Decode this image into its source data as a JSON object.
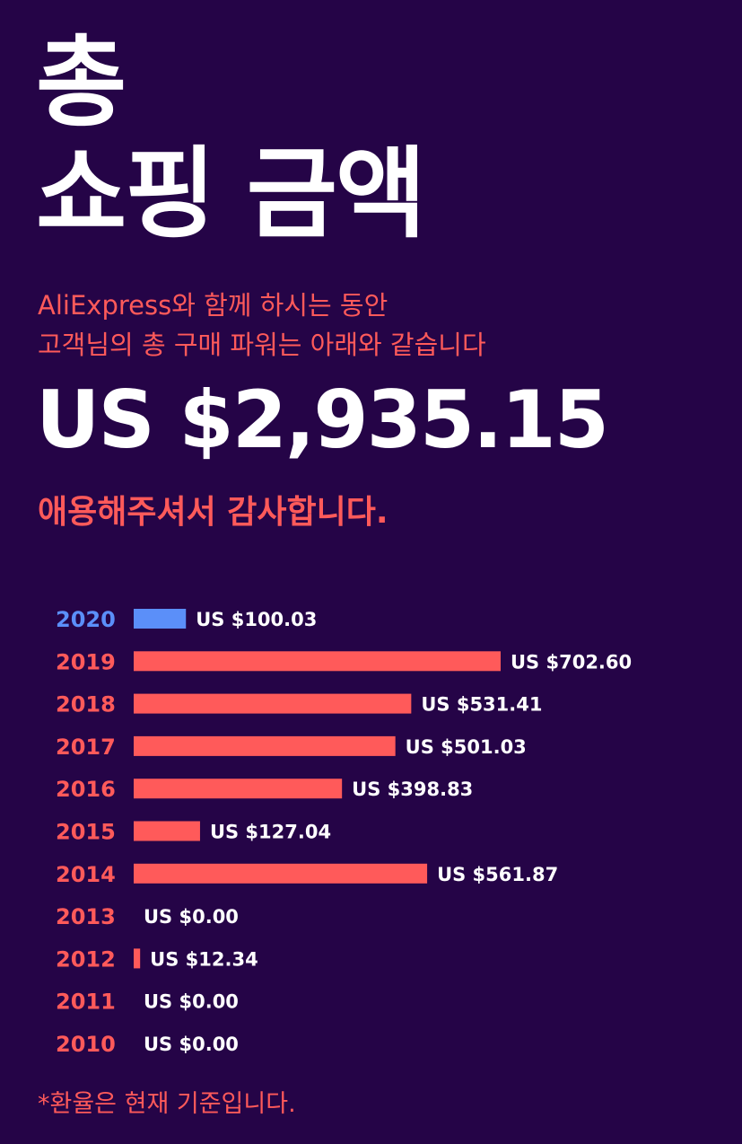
{
  "header": {
    "title_line1": "총",
    "title_line2": "쇼핑 금액",
    "subtitle_line1": "AliExpress와 함께 하시는 동안",
    "subtitle_line2": "고객님의 총 구매 파워는 아래와 같습니다",
    "total": "US $2,935.15",
    "thanks": "애용해주셔서 감사합니다."
  },
  "footnote": "*환율은 현재 기준입니다.",
  "colors": {
    "background": "#250447",
    "accent": "#ff5a5a",
    "highlight": "#5b8ff9",
    "text": "#ffffff"
  },
  "chart_data": {
    "type": "bar",
    "orientation": "horizontal",
    "categories": [
      "2020",
      "2019",
      "2018",
      "2017",
      "2016",
      "2015",
      "2014",
      "2013",
      "2012",
      "2011",
      "2010"
    ],
    "values": [
      100.03,
      702.6,
      531.41,
      501.03,
      398.83,
      127.04,
      561.87,
      0.0,
      12.34,
      0.0,
      0.0
    ],
    "value_labels": [
      "US $100.03",
      "US $702.60",
      "US $531.41",
      "US $501.03",
      "US $398.83",
      "US $127.04",
      "US $561.87",
      "US $0.00",
      "US $12.34",
      "US $0.00",
      "US $0.00"
    ],
    "highlight_category": "2020",
    "xlim": [
      0,
      702.6
    ],
    "grid": false,
    "title": "",
    "xlabel": "",
    "ylabel": ""
  }
}
